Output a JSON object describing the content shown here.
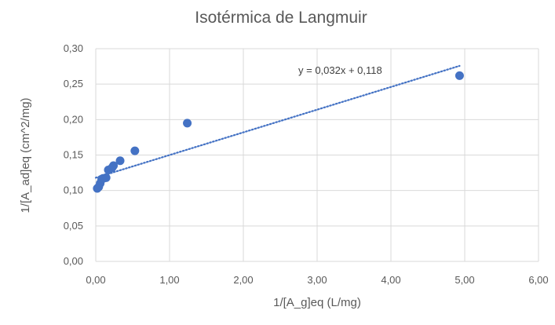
{
  "chart_data": {
    "type": "scatter",
    "title": "Isotérmica de Langmuir",
    "xlabel": "1/[A_g]eq (L/mg)",
    "ylabel": "1/[A_ad]eq (cm^2/mg)",
    "xlim": [
      0,
      6
    ],
    "ylim": [
      0,
      0.3
    ],
    "x_ticks": [
      "0,00",
      "1,00",
      "2,00",
      "3,00",
      "4,00",
      "5,00",
      "6,00"
    ],
    "y_ticks": [
      "0,00",
      "0,05",
      "0,10",
      "0,15",
      "0,20",
      "0,25",
      "0,30"
    ],
    "grid": true,
    "legend": "none",
    "series": [
      {
        "x": [
          0.02,
          0.04,
          0.06,
          0.08,
          0.1,
          0.14,
          0.17,
          0.22,
          0.24,
          0.33,
          0.53,
          1.24,
          4.93
        ],
        "y": [
          0.103,
          0.105,
          0.11,
          0.116,
          0.117,
          0.118,
          0.129,
          0.132,
          0.135,
          0.142,
          0.156,
          0.195,
          0.262
        ],
        "color": "#4472C4"
      }
    ],
    "trendline": {
      "type": "linear",
      "slope": 0.032,
      "intercept": 0.118,
      "x_range": [
        0,
        4.93
      ],
      "equation": "y = 0,032x + 0,118",
      "color": "#4472C4",
      "style": "dotted"
    }
  }
}
